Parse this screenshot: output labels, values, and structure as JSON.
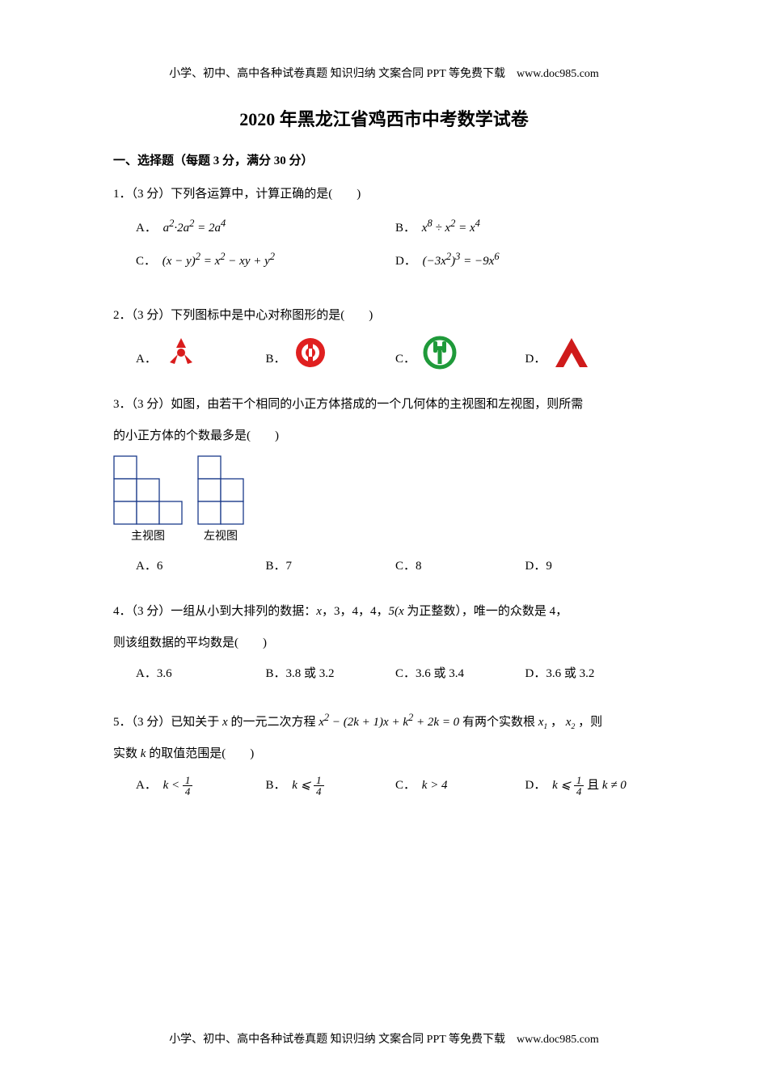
{
  "header_text": "小学、初中、高中各种试卷真题 知识归纳 文案合同 PPT 等免费下载　www.doc985.com",
  "footer_text": "小学、初中、高中各种试卷真题 知识归纳 文案合同 PPT 等免费下载　www.doc985.com",
  "title": "2020 年黑龙江省鸡西市中考数学试卷",
  "section1": "一、选择题（每题 3 分，满分 30 分）",
  "q1": {
    "text": "1．（3 分）下列各运算中，计算正确的是",
    "A_label": "A．",
    "B_label": "B．",
    "C_label": "C．",
    "D_label": "D．",
    "A_expr": "a²·2a² = 2a⁴",
    "B_expr": "x⁸ ÷ x² = x⁴",
    "C_expr": "(x − y)² = x² − xy + y²",
    "D_expr": "(−3x²)³ = −9x⁶"
  },
  "q2": {
    "text": "2．（3 分）下列图标中是中心对称图形的是",
    "A_label": "A．",
    "B_label": "B．",
    "C_label": "C．",
    "D_label": "D．",
    "icon_colors": {
      "A": "#d91c1c",
      "B": "#e02020",
      "C": "#1f9a3a",
      "D": "#cf1b1b"
    }
  },
  "q3": {
    "text": "3．（3 分）如图，由若干个相同的小正方体搭成的一个几何体的主视图和左视图，则所需",
    "text2": "的小正方体的个数最多是",
    "main_view_label": "主视图",
    "left_view_label": "左视图",
    "A": "A．6",
    "B": "B．7",
    "C": "C．8",
    "D": "D．9",
    "grid_color": "#1a3a8a",
    "cell_size": 28,
    "main_view": [
      [
        1,
        0,
        0
      ],
      [
        1,
        1,
        0
      ],
      [
        1,
        1,
        1
      ]
    ],
    "left_view": [
      [
        1,
        0
      ],
      [
        1,
        1
      ],
      [
        1,
        1
      ]
    ]
  },
  "q4": {
    "text_a": "4．（3 分）一组从小到大排列的数据：",
    "text_b": "，3，4，4，",
    "text_c": " 为正整数），唯一的众数是 4，",
    "text2": "则该组数据的平均数是",
    "var_x": "x",
    "var_5x": "5(x",
    "A": "A．3.6",
    "B": "B．3.8 或 3.2",
    "C": "C．3.6 或 3.4",
    "D": "D．3.6 或 3.2"
  },
  "q5": {
    "text_a": "5．（3 分）已知关于",
    "text_b": "的一元二次方程",
    "text_c": "有两个实数根",
    "text_d": "，",
    "text_e": "，则",
    "text2": "实数",
    "text2b": "的取值范围是",
    "var_x": "x",
    "var_x1": "x₁",
    "var_x2": "x₂",
    "var_k": "k",
    "eq": "x² − (2k + 1)x + k² + 2k = 0",
    "A_label": "A．",
    "B_label": "B．",
    "C_label": "C．",
    "D_label": "D．",
    "A_expr_pre": "k < ",
    "B_expr_pre": "k ⩽ ",
    "C_expr": "k > 4",
    "D_expr_pre": "k ⩽ ",
    "D_expr_post": " 且 k ≠ 0",
    "frac_num": "1",
    "frac_den": "4"
  }
}
